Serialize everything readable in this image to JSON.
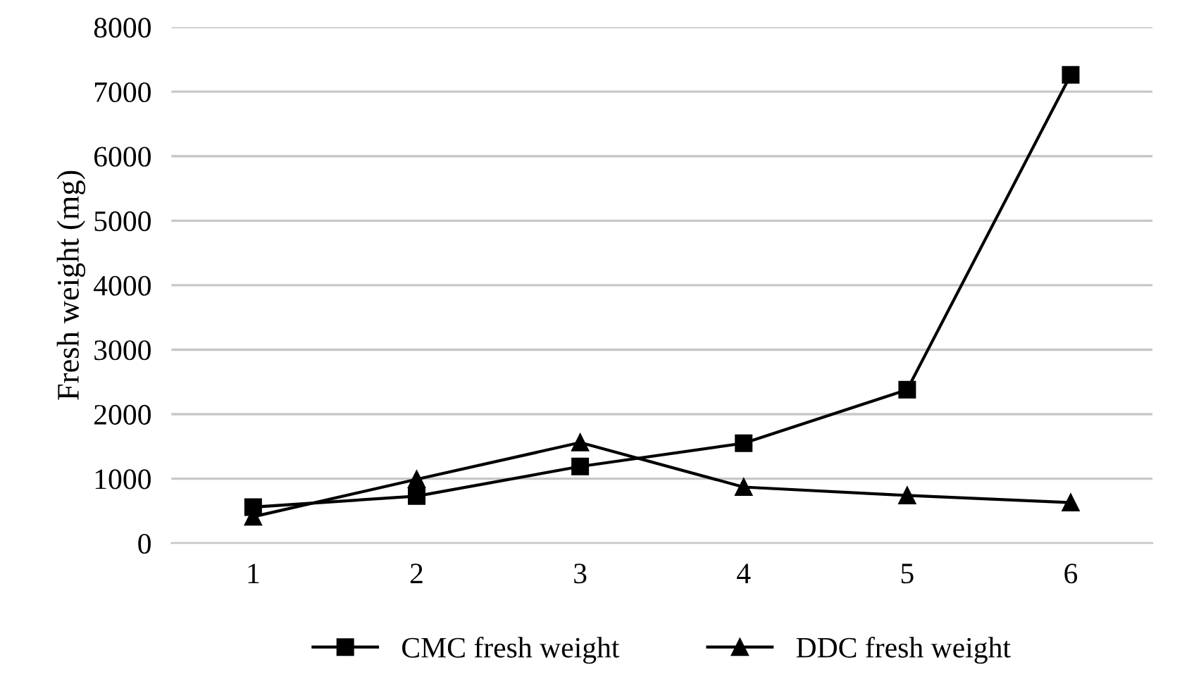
{
  "chart_data": {
    "type": "line",
    "ylabel": "Fresh weight (mg)",
    "categories": [
      "1",
      "2",
      "3",
      "4",
      "5",
      "6"
    ],
    "series": [
      {
        "name": "CMC fresh weight",
        "color": "#000000",
        "marker": "square",
        "values": [
          560,
          730,
          1190,
          1550,
          2380,
          7260
        ]
      },
      {
        "name": "DDC fresh weight",
        "color": "#000000",
        "marker": "triangle",
        "values": [
          410,
          990,
          1560,
          870,
          740,
          630
        ]
      }
    ],
    "ylim": [
      0,
      8000
    ],
    "yticks": [
      0,
      1000,
      2000,
      3000,
      4000,
      5000,
      6000,
      7000,
      8000
    ],
    "grid": "y",
    "legend": "bottom",
    "line_style": "solid"
  }
}
